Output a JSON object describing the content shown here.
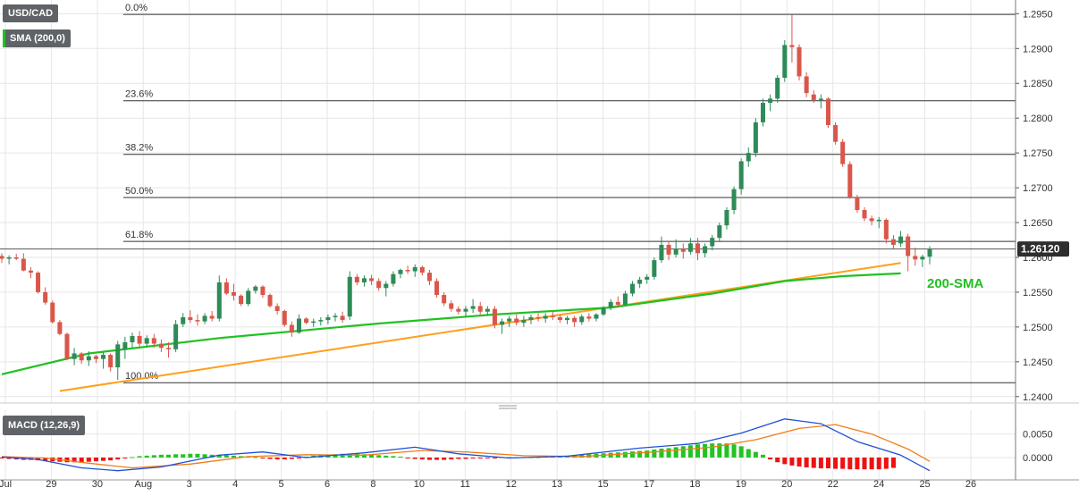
{
  "legend": {
    "symbol": "USD/CAD",
    "sma": "SMA (200,0)",
    "sma_color": "#21c121",
    "macd": "MACD (12,26,9)"
  },
  "annotations": {
    "sma_label": "200-SMA",
    "price_tag": "1.26120"
  },
  "colors": {
    "up": "#2e8b57",
    "down": "#d9574a",
    "sma": "#21c121",
    "trendline": "#ff9f1c",
    "macd_line": "#1f4fd6",
    "signal_line": "#f07d1a",
    "hist_pos": "#22c322",
    "hist_neg": "#ee1111",
    "grid": "#e6e6e6",
    "fib": "#333333"
  },
  "chart_data": [
    {
      "type": "candlestick",
      "title": "USD/CAD",
      "ylim": [
        1.2392,
        1.2962
      ],
      "y_ticks": [
        1.24,
        1.245,
        1.25,
        1.255,
        1.26,
        1.265,
        1.27,
        1.275,
        1.28,
        1.285,
        1.29,
        1.295
      ],
      "y_tick_labels": [
        "1.2400",
        "1.2450",
        "1.2500",
        "1.2550",
        "1.2600",
        "1.2650",
        "1.2700",
        "1.2750",
        "1.2800",
        "1.2850",
        "1.2900",
        "1.2950"
      ],
      "x_tick_labels": [
        "Jul",
        "29",
        "30",
        "Aug",
        "3",
        "4",
        "5",
        "6",
        "8",
        "10",
        "11",
        "12",
        "13",
        "15",
        "17",
        "18",
        "19",
        "20",
        "22",
        "24",
        "25",
        "26"
      ],
      "last_price": 1.2612,
      "fibonacci": [
        {
          "label": "0.0%",
          "value": 1.2949
        },
        {
          "label": "23.6%",
          "value": 1.2825
        },
        {
          "label": "38.2%",
          "value": 1.2748
        },
        {
          "label": "50.0%",
          "value": 1.2686
        },
        {
          "label": "61.8%",
          "value": 1.2623
        },
        {
          "label": "100.0%",
          "value": 1.242
        }
      ],
      "candles": [
        [
          1.2602,
          1.2606,
          1.2592,
          1.2598
        ],
        [
          1.2598,
          1.2603,
          1.259,
          1.26
        ],
        [
          1.26,
          1.2605,
          1.2596,
          1.2598
        ],
        [
          1.2598,
          1.2606,
          1.258,
          1.2581
        ],
        [
          1.2581,
          1.2586,
          1.257,
          1.2578
        ],
        [
          1.2578,
          1.258,
          1.2548,
          1.255
        ],
        [
          1.255,
          1.2557,
          1.2532,
          1.2535
        ],
        [
          1.2535,
          1.2538,
          1.2505,
          1.2507
        ],
        [
          1.2507,
          1.251,
          1.2488,
          1.249
        ],
        [
          1.249,
          1.2492,
          1.2452,
          1.2454
        ],
        [
          1.2454,
          1.247,
          1.2445,
          1.2462
        ],
        [
          1.2462,
          1.2464,
          1.2447,
          1.2452
        ],
        [
          1.2452,
          1.2465,
          1.2444,
          1.2458
        ],
        [
          1.2458,
          1.246,
          1.2448,
          1.2454
        ],
        [
          1.2454,
          1.2464,
          1.244,
          1.246
        ],
        [
          1.246,
          1.2462,
          1.2436,
          1.2442
        ],
        [
          1.2442,
          1.248,
          1.2424,
          1.2475
        ],
        [
          1.2468,
          1.2486,
          1.2454,
          1.2478
        ],
        [
          1.2478,
          1.2492,
          1.247,
          1.2487
        ],
        [
          1.2487,
          1.2494,
          1.2472,
          1.2476
        ],
        [
          1.2476,
          1.2488,
          1.2472,
          1.2484
        ],
        [
          1.2484,
          1.249,
          1.247,
          1.2476
        ],
        [
          1.2476,
          1.2482,
          1.2464,
          1.247
        ],
        [
          1.247,
          1.2478,
          1.2456,
          1.2468
        ],
        [
          1.2468,
          1.251,
          1.2464,
          1.2504
        ],
        [
          1.2504,
          1.252,
          1.25,
          1.2514
        ],
        [
          1.2514,
          1.2524,
          1.2506,
          1.251
        ],
        [
          1.251,
          1.2518,
          1.2502,
          1.2508
        ],
        [
          1.2508,
          1.252,
          1.2504,
          1.2516
        ],
        [
          1.2516,
          1.2523,
          1.2508,
          1.2512
        ],
        [
          1.2512,
          1.2574,
          1.2508,
          1.2564
        ],
        [
          1.2564,
          1.257,
          1.2546,
          1.2548
        ],
        [
          1.255,
          1.2562,
          1.2538,
          1.2545
        ],
        [
          1.2545,
          1.2547,
          1.253,
          1.2533
        ],
        [
          1.2533,
          1.2556,
          1.253,
          1.2552
        ],
        [
          1.2552,
          1.256,
          1.2548,
          1.2558
        ],
        [
          1.2558,
          1.256,
          1.2542,
          1.2546
        ],
        [
          1.2546,
          1.2548,
          1.2528,
          1.253
        ],
        [
          1.253,
          1.2534,
          1.2518,
          1.2523
        ],
        [
          1.2523,
          1.2525,
          1.25,
          1.2503
        ],
        [
          1.2503,
          1.2508,
          1.2486,
          1.2492
        ],
        [
          1.2492,
          1.2518,
          1.249,
          1.2512
        ],
        [
          1.2512,
          1.2514,
          1.2504,
          1.2506
        ],
        [
          1.2506,
          1.2512,
          1.25,
          1.2508
        ],
        [
          1.2508,
          1.2514,
          1.2502,
          1.251
        ],
        [
          1.251,
          1.2518,
          1.2504,
          1.2514
        ],
        [
          1.2514,
          1.252,
          1.2508,
          1.2516
        ],
        [
          1.2516,
          1.2522,
          1.2506,
          1.251
        ],
        [
          1.2515,
          1.258,
          1.251,
          1.2572
        ],
        [
          1.2572,
          1.2576,
          1.256,
          1.2564
        ],
        [
          1.2564,
          1.2574,
          1.2558,
          1.257
        ],
        [
          1.257,
          1.2575,
          1.256,
          1.2566
        ],
        [
          1.2566,
          1.257,
          1.2552,
          1.2556
        ],
        [
          1.2556,
          1.2566,
          1.2544,
          1.2562
        ],
        [
          1.2562,
          1.258,
          1.2558,
          1.2576
        ],
        [
          1.2576,
          1.2584,
          1.257,
          1.2582
        ],
        [
          1.2582,
          1.2588,
          1.2576,
          1.258
        ],
        [
          1.258,
          1.259,
          1.2572,
          1.2586
        ],
        [
          1.2586,
          1.2588,
          1.2574,
          1.2578
        ],
        [
          1.2578,
          1.2582,
          1.256,
          1.2566
        ],
        [
          1.2566,
          1.257,
          1.2542,
          1.2546
        ],
        [
          1.2546,
          1.255,
          1.253,
          1.2534
        ],
        [
          1.2534,
          1.2538,
          1.2522,
          1.2526
        ],
        [
          1.2526,
          1.253,
          1.2518,
          1.2522
        ],
        [
          1.2522,
          1.253,
          1.2514,
          1.2526
        ],
        [
          1.2526,
          1.254,
          1.252,
          1.253
        ],
        [
          1.253,
          1.2536,
          1.2518,
          1.2522
        ],
        [
          1.2522,
          1.253,
          1.2516,
          1.2526
        ],
        [
          1.2526,
          1.253,
          1.2498,
          1.2503
        ],
        [
          1.2503,
          1.2512,
          1.249,
          1.2508
        ],
        [
          1.2508,
          1.2516,
          1.25,
          1.2512
        ],
        [
          1.2512,
          1.2518,
          1.2502,
          1.2506
        ],
        [
          1.2506,
          1.2516,
          1.25,
          1.251
        ],
        [
          1.251,
          1.2518,
          1.2504,
          1.2514
        ],
        [
          1.2514,
          1.252,
          1.2508,
          1.2512
        ],
        [
          1.2512,
          1.252,
          1.2506,
          1.2516
        ],
        [
          1.2516,
          1.2522,
          1.251,
          1.2514
        ],
        [
          1.2514,
          1.2518,
          1.2506,
          1.251
        ],
        [
          1.251,
          1.2516,
          1.2504,
          1.2513
        ],
        [
          1.2513,
          1.2516,
          1.25,
          1.2507
        ],
        [
          1.2507,
          1.2518,
          1.2503,
          1.2515
        ],
        [
          1.2515,
          1.252,
          1.2508,
          1.2512
        ],
        [
          1.2512,
          1.252,
          1.2508,
          1.2518
        ],
        [
          1.2518,
          1.253,
          1.2516,
          1.2528
        ],
        [
          1.2528,
          1.254,
          1.2524,
          1.2536
        ],
        [
          1.2536,
          1.2544,
          1.2528,
          1.2532
        ],
        [
          1.2532,
          1.2552,
          1.253,
          1.2548
        ],
        [
          1.2548,
          1.2566,
          1.2544,
          1.2562
        ],
        [
          1.2562,
          1.2572,
          1.2556,
          1.2568
        ],
        [
          1.2568,
          1.2576,
          1.2562,
          1.2572
        ],
        [
          1.2572,
          1.26,
          1.2568,
          1.2596
        ],
        [
          1.2596,
          1.263,
          1.2592,
          1.2618
        ],
        [
          1.2618,
          1.2624,
          1.2596,
          1.2604
        ],
        [
          1.2604,
          1.2626,
          1.26,
          1.2612
        ],
        [
          1.2612,
          1.262,
          1.2598,
          1.2608
        ],
        [
          1.2608,
          1.2628,
          1.2604,
          1.262
        ],
        [
          1.262,
          1.2628,
          1.2596,
          1.2606
        ],
        [
          1.2606,
          1.262,
          1.26,
          1.2616
        ],
        [
          1.2616,
          1.2632,
          1.261,
          1.2628
        ],
        [
          1.2628,
          1.265,
          1.2622,
          1.2646
        ],
        [
          1.2646,
          1.2672,
          1.264,
          1.2668
        ],
        [
          1.2668,
          1.2702,
          1.2662,
          1.2698
        ],
        [
          1.2698,
          1.2742,
          1.269,
          1.2738
        ],
        [
          1.2738,
          1.2758,
          1.273,
          1.275
        ],
        [
          1.275,
          1.28,
          1.2744,
          1.2794
        ],
        [
          1.2794,
          1.2828,
          1.2788,
          1.2822
        ],
        [
          1.2822,
          1.2834,
          1.281,
          1.2828
        ],
        [
          1.2828,
          1.2862,
          1.2822,
          1.2858
        ],
        [
          1.2858,
          1.2912,
          1.2852,
          1.2905
        ],
        [
          1.2905,
          1.2949,
          1.288,
          1.2902
        ],
        [
          1.2902,
          1.2906,
          1.2854,
          1.286
        ],
        [
          1.286,
          1.2866,
          1.283,
          1.2836
        ],
        [
          1.2834,
          1.284,
          1.2822,
          1.2826
        ],
        [
          1.2826,
          1.2834,
          1.2814,
          1.2828
        ],
        [
          1.2828,
          1.283,
          1.2786,
          1.279
        ],
        [
          1.279,
          1.2794,
          1.2762,
          1.2766
        ],
        [
          1.2766,
          1.277,
          1.273,
          1.2734
        ],
        [
          1.2734,
          1.2738,
          1.2684,
          1.2686
        ],
        [
          1.2686,
          1.269,
          1.2664,
          1.2668
        ],
        [
          1.2668,
          1.2672,
          1.2652,
          1.2656
        ],
        [
          1.2656,
          1.266,
          1.2646,
          1.2652
        ],
        [
          1.2652,
          1.2658,
          1.2642,
          1.2654
        ],
        [
          1.2654,
          1.2656,
          1.262,
          1.2626
        ],
        [
          1.2626,
          1.2632,
          1.2612,
          1.2618
        ],
        [
          1.262,
          1.2638,
          1.2615,
          1.263
        ],
        [
          1.263,
          1.2634,
          1.258,
          1.2602
        ],
        [
          1.2602,
          1.2614,
          1.2588,
          1.2597
        ],
        [
          1.2597,
          1.2604,
          1.2586,
          1.2601
        ],
        [
          1.2601,
          1.2616,
          1.259,
          1.2612
        ]
      ],
      "series": [
        {
          "name": "200-SMA",
          "points": [
            [
              0,
              1.2432
            ],
            [
              12,
              1.2462
            ],
            [
              30,
              1.2484
            ],
            [
              52,
              1.2505
            ],
            [
              68,
              1.2518
            ],
            [
              84,
              1.2528
            ],
            [
              98,
              1.2548
            ],
            [
              108,
              1.2566
            ],
            [
              116,
              1.2573
            ],
            [
              124,
              1.2577
            ]
          ]
        },
        {
          "points": [
            [
              8,
              1.2408
            ],
            [
              124,
              1.2592
            ]
          ]
        }
      ]
    },
    {
      "type": "macd",
      "title": "MACD (12,26,9)",
      "ylim": [
        -0.004,
        0.0095
      ],
      "y_ticks": [
        0.0,
        0.005
      ],
      "y_tick_labels": [
        "0.0000",
        "0.0050"
      ],
      "histogram": [
        -0.0002,
        -0.0003,
        -0.0004,
        -0.0005,
        -0.0005,
        -0.0006,
        -0.0007,
        -0.0008,
        -0.0009,
        -0.001,
        -0.001,
        -0.001,
        -0.0009,
        -0.0008,
        -0.0007,
        -0.0006,
        -0.0004,
        -0.0002,
        0.0001,
        0.0003,
        0.0004,
        0.0005,
        0.0006,
        0.0006,
        0.0007,
        0.0007,
        0.0008,
        0.0008,
        0.0007,
        0.0006,
        0.0006,
        0.0005,
        0.0004,
        0.0003,
        0.0002,
        0.0001,
        -0.0002,
        -0.0003,
        -0.0004,
        -0.0004,
        -0.0003,
        -0.0002,
        0.0002,
        0.0004,
        0.0005,
        0.0006,
        0.0007,
        0.0008,
        0.0008,
        0.0008,
        0.0007,
        0.0006,
        0.0005,
        0.0004,
        0.0003,
        0.0002,
        -0.0002,
        -0.0003,
        -0.0004,
        -0.0005,
        -0.0005,
        -0.0005,
        -0.0004,
        -0.0003,
        -0.0003,
        -0.0002,
        -0.0002,
        -0.0001,
        -0.0001,
        0.0001,
        0.0001,
        0.0001,
        0.0001,
        0.0001,
        0.0001,
        0.0002,
        0.0002,
        0.0003,
        0.0004,
        0.0005,
        0.0006,
        0.0007,
        0.0008,
        0.0009,
        0.001,
        0.0011,
        0.0012,
        0.0013,
        0.0014,
        0.0015,
        0.0017,
        0.0019,
        0.002,
        0.0022,
        0.0024,
        0.0026,
        0.0028,
        0.0029,
        0.003,
        0.003,
        0.003,
        0.0028,
        0.0024,
        0.0018,
        0.0012,
        0.0006,
        -0.0004,
        -0.001,
        -0.0014,
        -0.0017,
        -0.0019,
        -0.0021,
        -0.0022,
        -0.0023,
        -0.0023,
        -0.0024,
        -0.0024,
        -0.0025,
        -0.0025,
        -0.0025,
        -0.0025,
        -0.0025,
        -0.0024,
        -0.0022
      ],
      "series": [
        {
          "points": [
            [
              0,
              0.0001
            ],
            [
              5,
              -0.0004
            ],
            [
              11,
              -0.0022
            ],
            [
              16,
              -0.0028
            ],
            [
              22,
              -0.002
            ],
            [
              30,
              0.0005
            ],
            [
              36,
              0.0012
            ],
            [
              42,
              0.0
            ],
            [
              50,
              0.001
            ],
            [
              57,
              0.0022
            ],
            [
              63,
              0.0008
            ],
            [
              70,
              -0.0001
            ],
            [
              78,
              0.0003
            ],
            [
              88,
              0.002
            ],
            [
              96,
              0.003
            ],
            [
              102,
              0.0052
            ],
            [
              108,
              0.0082
            ],
            [
              113,
              0.0072
            ],
            [
              118,
              0.0034
            ],
            [
              124,
              0.0005
            ],
            [
              128,
              -0.0028
            ]
          ]
        },
        {
          "points": [
            [
              0,
              0.0002
            ],
            [
              6,
              -0.0001
            ],
            [
              12,
              -0.0012
            ],
            [
              18,
              -0.0022
            ],
            [
              26,
              -0.0014
            ],
            [
              34,
              0.0002
            ],
            [
              42,
              0.0006
            ],
            [
              50,
              0.0005
            ],
            [
              58,
              0.0015
            ],
            [
              64,
              0.0012
            ],
            [
              72,
              0.0004
            ],
            [
              80,
              0.0002
            ],
            [
              90,
              0.0012
            ],
            [
              98,
              0.0022
            ],
            [
              104,
              0.0038
            ],
            [
              110,
              0.0062
            ],
            [
              115,
              0.007
            ],
            [
              120,
              0.005
            ],
            [
              125,
              0.0018
            ],
            [
              128,
              -0.0008
            ]
          ]
        }
      ]
    }
  ]
}
